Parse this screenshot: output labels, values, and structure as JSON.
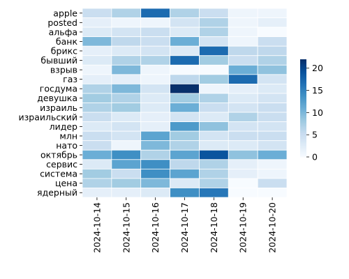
{
  "chart_data": {
    "type": "heatmap",
    "title": "",
    "xlabel": "",
    "ylabel": "",
    "x": [
      "2024-10-14",
      "2024-10-15",
      "2024-10-16",
      "2024-10-17",
      "2024-10-18",
      "2024-10-19",
      "2024-10-20"
    ],
    "y": [
      "apple",
      "posted",
      "альфа",
      "банк",
      "брикс",
      "бывший",
      "взрыв",
      "газ",
      "госдума",
      "девушка",
      "израиль",
      "израильский",
      "лидер",
      "млн",
      "нато",
      "октябрь",
      "сервис",
      "система",
      "цена",
      "ядерный"
    ],
    "values": [
      [
        5,
        7,
        17,
        7,
        5,
        1,
        1
      ],
      [
        2,
        1,
        1,
        4,
        7,
        1,
        2
      ],
      [
        3,
        4,
        5,
        3,
        7,
        1,
        0
      ],
      [
        10,
        6,
        5,
        11,
        4,
        1,
        5
      ],
      [
        2,
        3,
        4,
        3,
        17,
        6,
        6
      ],
      [
        3,
        7,
        7,
        17,
        8,
        5,
        7
      ],
      [
        1,
        10,
        1,
        0,
        0,
        11,
        9
      ],
      [
        2,
        2,
        1,
        6,
        8,
        17,
        4
      ],
      [
        7,
        10,
        4,
        22,
        1,
        2,
        3
      ],
      [
        8,
        7,
        3,
        8,
        7,
        3,
        4
      ],
      [
        7,
        8,
        3,
        11,
        5,
        4,
        5
      ],
      [
        5,
        3,
        2,
        4,
        3,
        7,
        5
      ],
      [
        3,
        4,
        2,
        13,
        9,
        4,
        4
      ],
      [
        5,
        4,
        12,
        8,
        4,
        5,
        5
      ],
      [
        5,
        1,
        10,
        7,
        3,
        3,
        4
      ],
      [
        11,
        14,
        7,
        12,
        19,
        9,
        11
      ],
      [
        3,
        12,
        14,
        6,
        7,
        2,
        1
      ],
      [
        8,
        5,
        14,
        12,
        7,
        2,
        1
      ],
      [
        7,
        8,
        10,
        3,
        7,
        0,
        5
      ],
      [
        2,
        2,
        3,
        14,
        16,
        0,
        0
      ]
    ],
    "colorbar": {
      "min": 0,
      "max": 22,
      "ticks": [
        0,
        5,
        10,
        15,
        20
      ]
    },
    "colormap": [
      "#f7fbff",
      "#deebf7",
      "#c6dbef",
      "#9ecae1",
      "#6baed6",
      "#4292c6",
      "#2171b5",
      "#08519c",
      "#08306b"
    ],
    "grid": false,
    "legend": "right"
  }
}
